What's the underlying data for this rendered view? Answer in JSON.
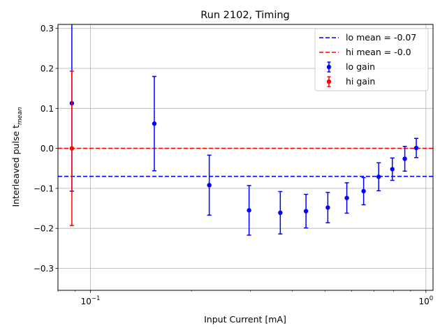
{
  "chart_data": {
    "type": "scatter",
    "title": "Run 2102, Timing",
    "xlabel": "Input Current [mA]",
    "ylabel_main": "Interleaved pulse t",
    "ylabel_sub": "mean",
    "xscale": "log",
    "xlim": [
      0.08,
      1.05
    ],
    "ylim": [
      -0.355,
      0.31
    ],
    "grid": true,
    "legend_position": "upper right",
    "x_ticks": [
      {
        "value": 0.1,
        "base": "10",
        "exp": "−1"
      },
      {
        "value": 1.0,
        "base": "10",
        "exp": "0"
      }
    ],
    "y_ticks": [
      {
        "value": -0.3,
        "label": "−0.3"
      },
      {
        "value": -0.2,
        "label": "−0.2"
      },
      {
        "value": -0.1,
        "label": "−0.1"
      },
      {
        "value": 0.0,
        "label": "0.0"
      },
      {
        "value": 0.1,
        "label": "0.1"
      },
      {
        "value": 0.2,
        "label": "0.2"
      },
      {
        "value": 0.3,
        "label": "0.3"
      }
    ],
    "series": [
      {
        "name": "lo gain",
        "color": "#0000ff",
        "x": [
          0.088,
          0.155,
          0.226,
          0.297,
          0.368,
          0.439,
          0.51,
          0.581,
          0.652,
          0.723,
          0.794,
          0.865,
          0.936
        ],
        "y": [
          0.113,
          0.062,
          -0.092,
          -0.155,
          -0.161,
          -0.157,
          -0.148,
          -0.124,
          -0.107,
          -0.071,
          -0.052,
          -0.026,
          0.001
        ],
        "yerr": [
          0.22,
          0.118,
          0.075,
          0.062,
          0.053,
          0.042,
          0.038,
          0.038,
          0.034,
          0.035,
          0.028,
          0.031,
          0.024
        ]
      },
      {
        "name": "hi gain",
        "color": "#ff0000",
        "x": [
          0.088
        ],
        "y": [
          0.0
        ],
        "yerr": [
          0.193
        ]
      }
    ],
    "hlines": [
      {
        "name": "lo mean = -0.07",
        "y": -0.07,
        "color": "#0000ff"
      },
      {
        "name": "hi mean = -0.0",
        "y": 0.0,
        "color": "#ff0000"
      }
    ]
  }
}
